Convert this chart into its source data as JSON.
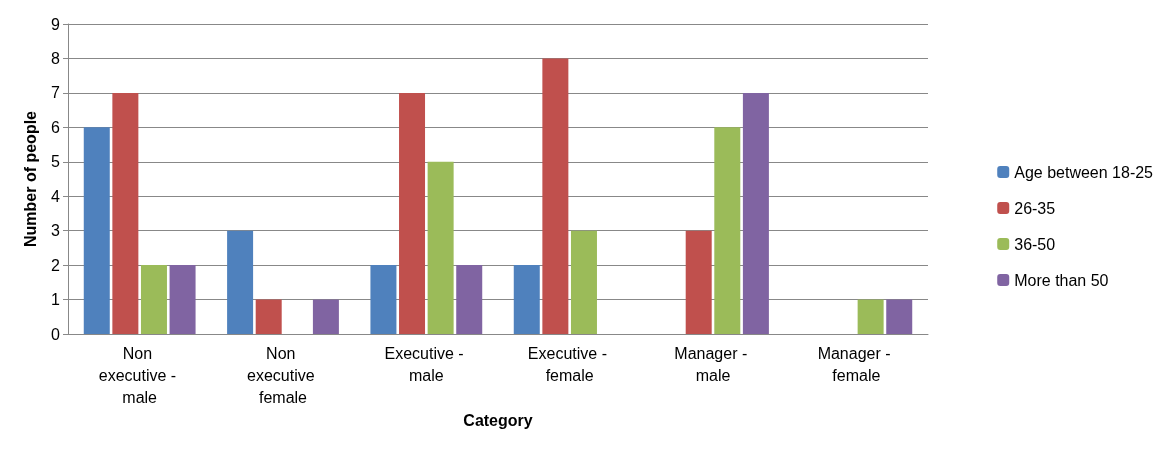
{
  "chart_data": {
    "type": "bar",
    "xlabel": "Category",
    "ylabel": "Number of people",
    "categories": [
      "Non executive - male",
      "Non executive female",
      "Executive - male",
      "Executive - female",
      "Manager - male",
      "Manager - female"
    ],
    "series": [
      {
        "name": "Age between 18-25",
        "color": "#4f81bd",
        "values": [
          6,
          3,
          2,
          2,
          null,
          null
        ]
      },
      {
        "name": "26-35",
        "color": "#c0504d",
        "values": [
          7,
          1,
          7,
          8,
          3,
          null
        ]
      },
      {
        "name": "36-50",
        "color": "#9bbb59",
        "values": [
          2,
          null,
          5,
          3,
          6,
          1
        ]
      },
      {
        "name": "More than 50",
        "color": "#8064a2",
        "values": [
          2,
          1,
          2,
          null,
          7,
          1
        ]
      }
    ],
    "ylim": [
      0,
      9
    ],
    "yticks": [
      0,
      1,
      2,
      3,
      4,
      5,
      6,
      7,
      8,
      9
    ],
    "grid": "y",
    "legend": "right"
  }
}
